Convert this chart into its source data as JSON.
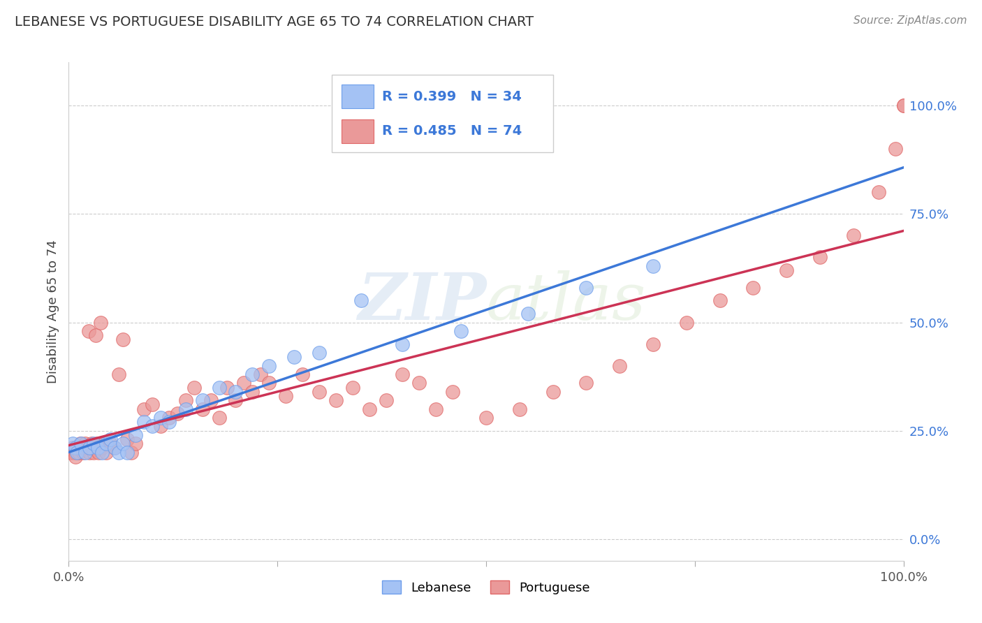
{
  "title": "LEBANESE VS PORTUGUESE DISABILITY AGE 65 TO 74 CORRELATION CHART",
  "source": "Source: ZipAtlas.com",
  "ylabel": "Disability Age 65 to 74",
  "xlim": [
    0,
    100
  ],
  "ylim": [
    -5,
    110
  ],
  "ytick_labels": [
    "0.0%",
    "25.0%",
    "50.0%",
    "75.0%",
    "100.0%"
  ],
  "ytick_positions": [
    0,
    25,
    50,
    75,
    100
  ],
  "xtick_positions": [
    0,
    25,
    50,
    75,
    100
  ],
  "xtick_labels": [
    "0.0%",
    "",
    "",
    "",
    "100.0%"
  ],
  "lebanese_color": "#a4c2f4",
  "portuguese_color": "#ea9999",
  "lebanese_edge": "#6d9eeb",
  "portuguese_edge": "#e06666",
  "lebanese_line_color": "#3c78d8",
  "portuguese_line_color": "#cc3355",
  "R_lebanese": 0.399,
  "N_lebanese": 34,
  "R_portuguese": 0.485,
  "N_portuguese": 74,
  "watermark_zip": "ZIP",
  "watermark_atlas": "atlas",
  "background_color": "#ffffff",
  "grid_color": "#cccccc",
  "lebanese_x": [
    0.5,
    0.8,
    1.0,
    1.5,
    2.0,
    2.5,
    3.0,
    3.5,
    4.0,
    4.5,
    5.0,
    5.5,
    6.0,
    6.5,
    7.0,
    8.0,
    9.0,
    10.0,
    11.0,
    12.0,
    14.0,
    16.0,
    18.0,
    20.0,
    22.0,
    24.0,
    27.0,
    30.0,
    35.0,
    40.0,
    47.0,
    55.0,
    62.0,
    70.0
  ],
  "lebanese_y": [
    22.0,
    21.0,
    20.0,
    22.0,
    20.0,
    21.0,
    22.0,
    21.0,
    20.0,
    22.0,
    23.0,
    21.0,
    20.0,
    22.0,
    20.0,
    24.0,
    27.0,
    26.0,
    28.0,
    27.0,
    30.0,
    32.0,
    35.0,
    34.0,
    38.0,
    40.0,
    42.0,
    43.0,
    55.0,
    45.0,
    48.0,
    52.0,
    58.0,
    63.0
  ],
  "portuguese_x": [
    0.3,
    0.5,
    0.7,
    0.8,
    1.0,
    1.2,
    1.4,
    1.5,
    1.7,
    1.8,
    2.0,
    2.2,
    2.4,
    2.5,
    2.7,
    2.8,
    3.0,
    3.2,
    3.4,
    3.6,
    3.8,
    4.0,
    4.2,
    4.5,
    5.0,
    5.5,
    6.0,
    6.5,
    7.0,
    7.5,
    8.0,
    9.0,
    10.0,
    11.0,
    12.0,
    13.0,
    14.0,
    15.0,
    16.0,
    17.0,
    18.0,
    19.0,
    20.0,
    21.0,
    22.0,
    23.0,
    24.0,
    26.0,
    28.0,
    30.0,
    32.0,
    34.0,
    36.0,
    38.0,
    40.0,
    42.0,
    44.0,
    46.0,
    50.0,
    54.0,
    58.0,
    62.0,
    66.0,
    70.0,
    74.0,
    78.0,
    82.0,
    86.0,
    90.0,
    94.0,
    97.0,
    99.0,
    100.0,
    100.0
  ],
  "portuguese_y": [
    20.0,
    21.0,
    20.0,
    19.0,
    21.0,
    20.0,
    22.0,
    21.0,
    20.0,
    21.0,
    22.0,
    21.0,
    48.0,
    20.0,
    22.0,
    21.0,
    20.0,
    47.0,
    22.0,
    20.0,
    50.0,
    21.0,
    22.0,
    20.0,
    22.0,
    21.0,
    38.0,
    46.0,
    23.0,
    20.0,
    22.0,
    30.0,
    31.0,
    26.0,
    28.0,
    29.0,
    32.0,
    35.0,
    30.0,
    32.0,
    28.0,
    35.0,
    32.0,
    36.0,
    34.0,
    38.0,
    36.0,
    33.0,
    38.0,
    34.0,
    32.0,
    35.0,
    30.0,
    32.0,
    38.0,
    36.0,
    30.0,
    34.0,
    28.0,
    30.0,
    34.0,
    36.0,
    40.0,
    45.0,
    50.0,
    55.0,
    58.0,
    62.0,
    65.0,
    70.0,
    80.0,
    90.0,
    100.0,
    100.0
  ]
}
